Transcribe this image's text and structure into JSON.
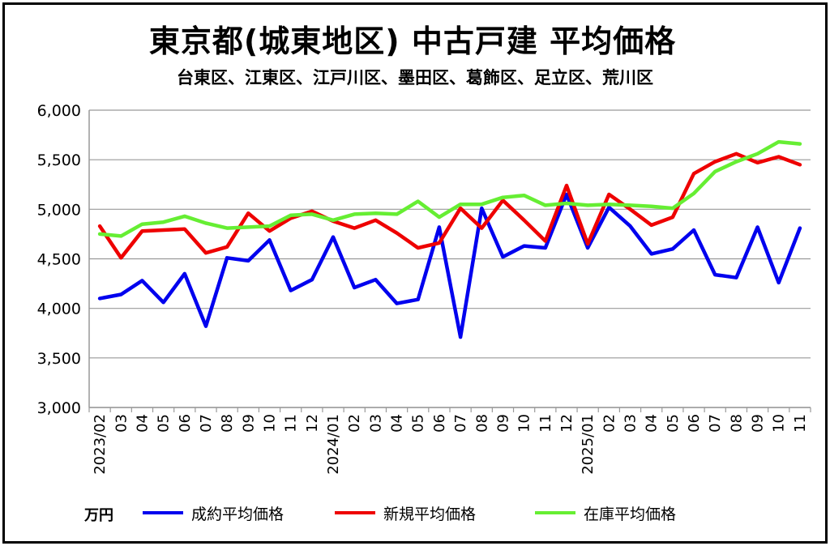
{
  "title": "東京都(城東地区)  中古戸建  平均価格",
  "subtitle": "台東区、江東区、江戸川区、墨田区、葛飾区、足立区、荒川区",
  "unit_label": "万円",
  "colors": {
    "contract": "#0000ee",
    "new": "#ee0000",
    "stock": "#66ee33",
    "grid": "#999999"
  },
  "chart_data": {
    "type": "line",
    "title": "東京都(城東地区)  中古戸建  平均価格",
    "subtitle": "台東区、江東区、江戸川区、墨田区、葛飾区、足立区、荒川区",
    "ylabel": "万円",
    "ylim": [
      3000,
      6000
    ],
    "yticks": [
      "3,000",
      "3,500",
      "4,000",
      "4,500",
      "5,000",
      "5,500",
      "6,000"
    ],
    "ytick_values": [
      3000,
      3500,
      4000,
      4500,
      5000,
      5500,
      6000
    ],
    "grid": true,
    "legend_position": "bottom",
    "categories": [
      "2023/02",
      "03",
      "04",
      "05",
      "06",
      "07",
      "08",
      "09",
      "10",
      "11",
      "12",
      "2024/01",
      "02",
      "03",
      "04",
      "05",
      "06",
      "07",
      "08",
      "09",
      "10",
      "11",
      "12",
      "2025/01",
      "02",
      "03",
      "04",
      "05",
      "06",
      "07",
      "08",
      "09",
      "10",
      "11"
    ],
    "series": [
      {
        "name": "成約平均価格",
        "color": "#0000ee",
        "values": [
          4100,
          4140,
          4280,
          4060,
          4350,
          3820,
          4510,
          4480,
          4690,
          4180,
          4290,
          4720,
          4210,
          4290,
          4050,
          4090,
          4820,
          3710,
          5010,
          4520,
          4630,
          4610,
          5150,
          4610,
          5020,
          4830,
          4550,
          4600,
          4790,
          4340,
          4310,
          4820,
          4260,
          4810
        ]
      },
      {
        "name": "新規平均価格",
        "color": "#ee0000",
        "values": [
          4830,
          4510,
          4780,
          4790,
          4800,
          4560,
          4620,
          4960,
          4780,
          4910,
          4980,
          4880,
          4810,
          4890,
          4760,
          4610,
          4660,
          5010,
          4810,
          5090,
          4890,
          4680,
          5240,
          4650,
          5150,
          5000,
          4840,
          4920,
          5360,
          5480,
          5560,
          5470,
          5530,
          5450
        ]
      },
      {
        "name": "在庫平均価格",
        "color": "#66ee33",
        "values": [
          4750,
          4730,
          4850,
          4870,
          4930,
          4860,
          4810,
          4820,
          4830,
          4940,
          4950,
          4890,
          4950,
          4960,
          4950,
          5080,
          4920,
          5050,
          5050,
          5120,
          5140,
          5040,
          5060,
          5040,
          5050,
          5040,
          5030,
          5010,
          5160,
          5380,
          5480,
          5560,
          5680,
          5660
        ]
      }
    ]
  }
}
